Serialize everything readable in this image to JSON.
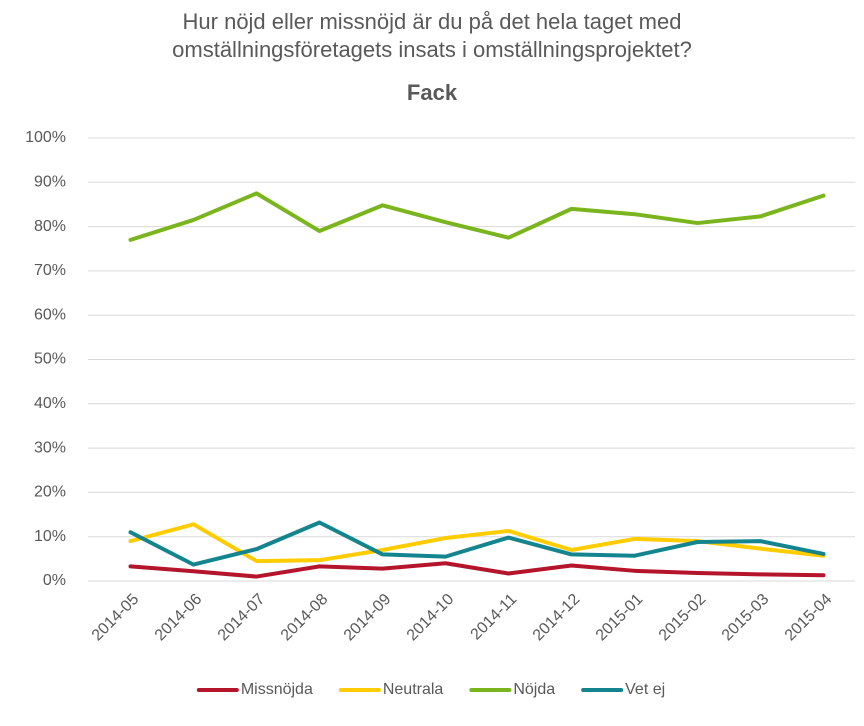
{
  "chart_data": {
    "type": "line",
    "title": "Hur nöjd eller missnöjd är du på det hela taget med omställningsföretagets insats i omställningsprojektet?",
    "subtitle": "Fack",
    "categories": [
      "2014-05",
      "2014-06",
      "2014-07",
      "2014-08",
      "2014-09",
      "2014-10",
      "2014-11",
      "2014-12",
      "2015-01",
      "2015-02",
      "2015-03",
      "2015-04"
    ],
    "series": [
      {
        "name": "Missnöjda",
        "color": "#b5152b",
        "values": [
          3.3,
          2.2,
          1,
          3.3,
          2.8,
          4,
          1.7,
          3.5,
          2.3,
          1.8,
          1.5,
          1.3
        ]
      },
      {
        "name": "Neutrala",
        "color": "#ffcc00",
        "values": [
          9,
          12.8,
          4.5,
          4.7,
          7,
          9.7,
          11.3,
          7,
          9.5,
          9,
          7.3,
          5.7
        ]
      },
      {
        "name": "Nöjda",
        "color": "#7ab51d",
        "values": [
          77,
          81.5,
          87.5,
          79,
          84.8,
          81,
          77.5,
          84,
          82.8,
          80.8,
          82.3,
          87
        ]
      },
      {
        "name": "Vet ej",
        "color": "#14858f",
        "values": [
          11,
          3.7,
          7.2,
          13.2,
          6,
          5.5,
          9.8,
          6,
          5.7,
          8.8,
          9,
          6.1
        ]
      }
    ],
    "ylim": [
      0,
      100
    ],
    "yticks": [
      {
        "value": 0,
        "label": "0%"
      },
      {
        "value": 10,
        "label": "10%"
      },
      {
        "value": 20,
        "label": "20%"
      },
      {
        "value": 30,
        "label": "30%"
      },
      {
        "value": 40,
        "label": "40%"
      },
      {
        "value": 50,
        "label": "50%"
      },
      {
        "value": 60,
        "label": "60%"
      },
      {
        "value": 70,
        "label": "70%"
      },
      {
        "value": 80,
        "label": "80%"
      },
      {
        "value": 90,
        "label": "90%"
      },
      {
        "value": 100,
        "label": "100%"
      }
    ],
    "grid": true,
    "legend": "bottom"
  }
}
